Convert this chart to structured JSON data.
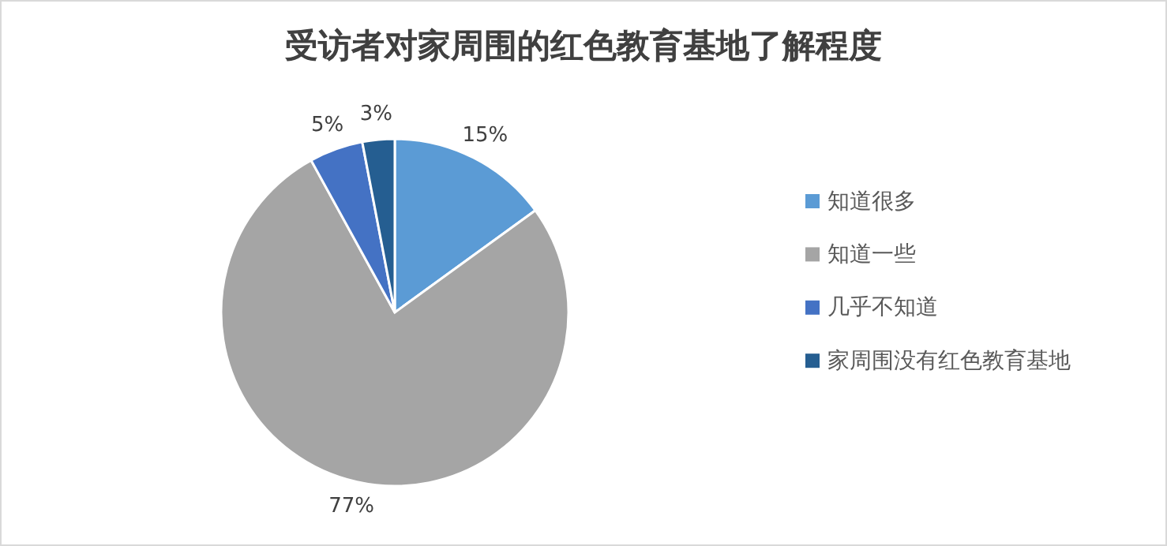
{
  "chart_data": {
    "type": "pie",
    "title": "受访者对家周围的红色教育基地了解程度",
    "categories": [
      "知道很多",
      "知道一些",
      "几乎不知道",
      "家周围没有红色教育基地"
    ],
    "values": [
      15,
      77,
      5,
      3
    ],
    "value_labels": [
      "15%",
      "77%",
      "5%",
      "3%"
    ],
    "colors": [
      "#5b9bd5",
      "#a5a5a5",
      "#4472c4",
      "#255e91"
    ],
    "legend": "right"
  }
}
